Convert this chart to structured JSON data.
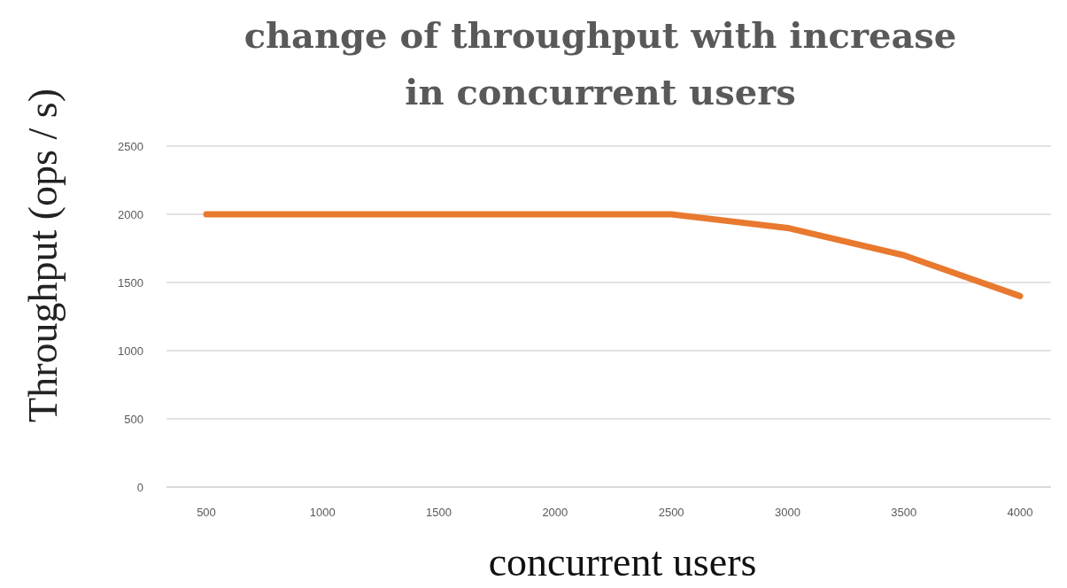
{
  "chart_data": {
    "type": "line",
    "title": "change of throughput with increase in concurrent users",
    "xlabel": "concurrent users",
    "ylabel": "Throughput (ops / s)",
    "categories": [
      "500",
      "1000",
      "1500",
      "2000",
      "2500",
      "3000",
      "3500",
      "4000"
    ],
    "series": [
      {
        "color": "#e8792f",
        "values": [
          2000,
          2000,
          2000,
          2000,
          2000,
          1900,
          1700,
          1400
        ]
      }
    ],
    "ylim": [
      0,
      2500
    ],
    "yticks": [
      0,
      500,
      1000,
      1500,
      2000,
      2500
    ],
    "grid": "y",
    "marker": "none",
    "line_style": "solid"
  }
}
